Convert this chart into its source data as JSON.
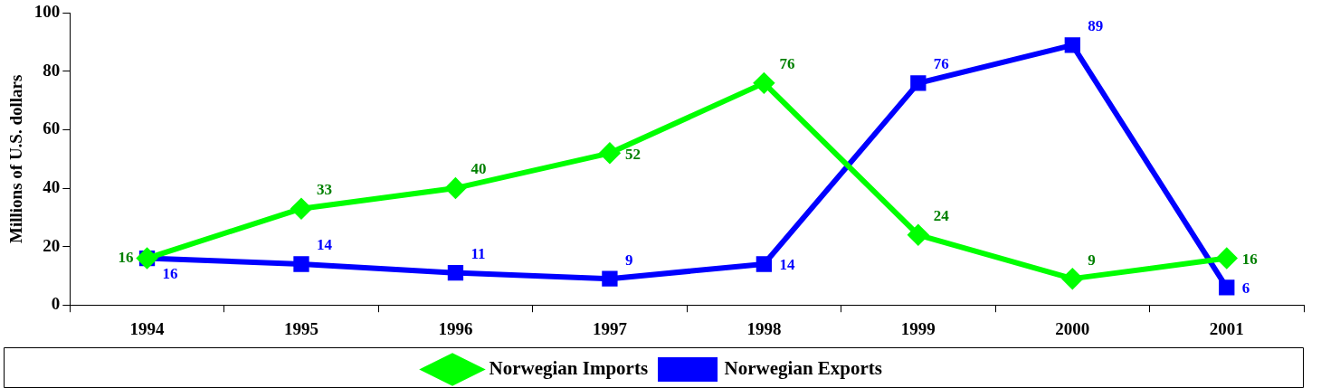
{
  "chart_data": {
    "type": "line",
    "ylabel": "Millions of U.S. dollars",
    "categories": [
      "1994",
      "1995",
      "1996",
      "1997",
      "1998",
      "1999",
      "2000",
      "2001"
    ],
    "series": [
      {
        "name": "Norwegian Imports",
        "color": "#00ff00",
        "marker": "diamond",
        "values": [
          16,
          33,
          40,
          52,
          76,
          24,
          9,
          16
        ]
      },
      {
        "name": "Norwegian Exports",
        "color": "#0000ff",
        "marker": "square",
        "values": [
          16,
          14,
          11,
          9,
          14,
          76,
          89,
          6
        ]
      }
    ],
    "ylim": [
      0,
      100
    ],
    "yticks": [
      0,
      20,
      40,
      60,
      80,
      100
    ],
    "grid": false,
    "legend": "bottom",
    "data_labels": true,
    "line_style": "solid"
  }
}
